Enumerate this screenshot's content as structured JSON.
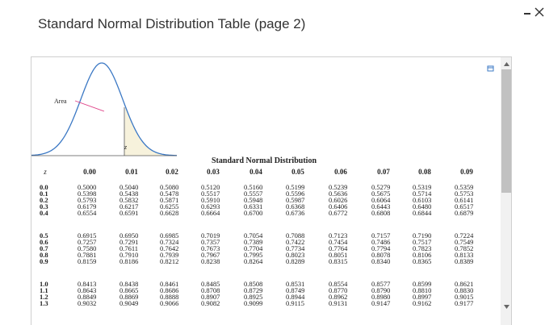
{
  "header": {
    "title": "Standard Normal Distribution Table (page 2)"
  },
  "figure": {
    "area_label": "Area",
    "z_label": "z"
  },
  "table": {
    "caption": "Standard Normal Distribution",
    "columns": [
      "z",
      "0.00",
      "0.01",
      "0.02",
      "0.03",
      "0.04",
      "0.05",
      "0.06",
      "0.07",
      "0.08",
      "0.09"
    ],
    "rows": [
      [
        "0.0",
        "0.5000",
        "0.5040",
        "0.5080",
        "0.5120",
        "0.5160",
        "0.5199",
        "0.5239",
        "0.5279",
        "0.5319",
        "0.5359"
      ],
      [
        "0.1",
        "0.5398",
        "0.5438",
        "0.5478",
        "0.5517",
        "0.5557",
        "0.5596",
        "0.5636",
        "0.5675",
        "0.5714",
        "0.5753"
      ],
      [
        "0.2",
        "0.5793",
        "0.5832",
        "0.5871",
        "0.5910",
        "0.5948",
        "0.5987",
        "0.6026",
        "0.6064",
        "0.6103",
        "0.6141"
      ],
      [
        "0.3",
        "0.6179",
        "0.6217",
        "0.6255",
        "0.6293",
        "0.6331",
        "0.6368",
        "0.6406",
        "0.6443",
        "0.6480",
        "0.6517"
      ],
      [
        "0.4",
        "0.6554",
        "0.6591",
        "0.6628",
        "0.6664",
        "0.6700",
        "0.6736",
        "0.6772",
        "0.6808",
        "0.6844",
        "0.6879"
      ],
      [
        "0.5",
        "0.6915",
        "0.6950",
        "0.6985",
        "0.7019",
        "0.7054",
        "0.7088",
        "0.7123",
        "0.7157",
        "0.7190",
        "0.7224"
      ],
      [
        "0.6",
        "0.7257",
        "0.7291",
        "0.7324",
        "0.7357",
        "0.7389",
        "0.7422",
        "0.7454",
        "0.7486",
        "0.7517",
        "0.7549"
      ],
      [
        "0.7",
        "0.7580",
        "0.7611",
        "0.7642",
        "0.7673",
        "0.7704",
        "0.7734",
        "0.7764",
        "0.7794",
        "0.7823",
        "0.7852"
      ],
      [
        "0.8",
        "0.7881",
        "0.7910",
        "0.7939",
        "0.7967",
        "0.7995",
        "0.8023",
        "0.8051",
        "0.8078",
        "0.8106",
        "0.8133"
      ],
      [
        "0.9",
        "0.8159",
        "0.8186",
        "0.8212",
        "0.8238",
        "0.8264",
        "0.8289",
        "0.8315",
        "0.8340",
        "0.8365",
        "0.8389"
      ],
      [
        "1.0",
        "0.8413",
        "0.8438",
        "0.8461",
        "0.8485",
        "0.8508",
        "0.8531",
        "0.8554",
        "0.8577",
        "0.8599",
        "0.8621"
      ],
      [
        "1.1",
        "0.8643",
        "0.8665",
        "0.8686",
        "0.8708",
        "0.8729",
        "0.8749",
        "0.8770",
        "0.8790",
        "0.8810",
        "0.8830"
      ],
      [
        "1.2",
        "0.8849",
        "0.8869",
        "0.8888",
        "0.8907",
        "0.8925",
        "0.8944",
        "0.8962",
        "0.8980",
        "0.8997",
        "0.9015"
      ],
      [
        "1.3",
        "0.9032",
        "0.9049",
        "0.9066",
        "0.9082",
        "0.9099",
        "0.9115",
        "0.9131",
        "0.9147",
        "0.9162",
        "0.9177"
      ]
    ]
  }
}
